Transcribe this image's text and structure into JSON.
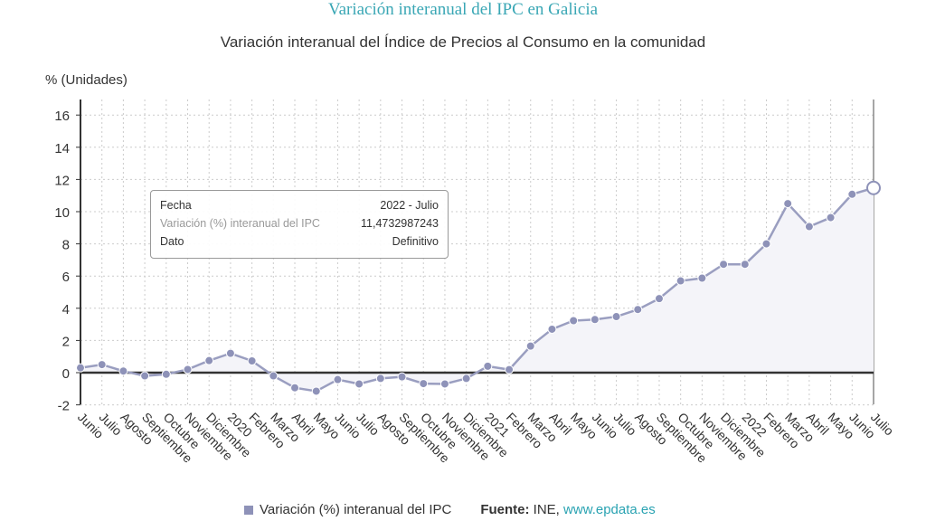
{
  "title": "Variación interanual del IPC en Galicia",
  "subtitle": "Variación interanual del Índice de Precios al Consumo en la comunidad",
  "tooltip": {
    "fecha_label": "Fecha",
    "fecha_value": "2022 - Julio",
    "series_label": "Variación (%) interanual del IPC",
    "series_value": "11,4732987243",
    "dato_label": "Dato",
    "dato_value": "Definitivo"
  },
  "legend": {
    "series": "Variación (%) interanual del IPC",
    "source_label": "Fuente:",
    "source_text": "INE,",
    "source_link": "www.epdata.es"
  },
  "colors": {
    "line": "#9a9ec0",
    "marker": "#8e92b8",
    "title": "#3aa7b5",
    "fill": "#f4f4f9"
  },
  "chart_data": {
    "type": "area",
    "ylabel": "% (Unidades)",
    "ylim": [
      -2,
      16
    ],
    "yticks": [
      -2,
      0,
      2,
      4,
      6,
      8,
      10,
      12,
      14,
      16
    ],
    "grid": true,
    "legend_position": "bottom",
    "categories": [
      "Junio",
      "Julio",
      "Agosto",
      "Septiembre",
      "Octubre",
      "Noviembre",
      "Diciembre",
      "2020",
      "Febrero",
      "Marzo",
      "Abril",
      "Mayo",
      "Junio",
      "Julio",
      "Agosto",
      "Septiembre",
      "Octubre",
      "Noviembre",
      "Diciembre",
      "2021",
      "Febrero",
      "Marzo",
      "Abril",
      "Mayo",
      "Junio",
      "Julio",
      "Agosto",
      "Septiembre",
      "Octubre",
      "Noviembre",
      "Diciembre",
      "2022",
      "Febrero",
      "Marzo",
      "Abril",
      "Mayo",
      "Junio",
      "Julio"
    ],
    "series": [
      {
        "name": "Variación (%) interanual del IPC",
        "values": [
          0.3,
          0.5,
          0.1,
          -0.2,
          -0.1,
          0.2,
          0.75,
          1.2,
          0.73,
          -0.2,
          -0.94,
          -1.15,
          -0.43,
          -0.7,
          -0.36,
          -0.26,
          -0.68,
          -0.7,
          -0.36,
          0.4,
          0.19,
          1.65,
          2.7,
          3.23,
          3.3,
          3.48,
          3.92,
          4.6,
          5.7,
          5.87,
          6.73,
          6.73,
          8.0,
          10.5,
          9.07,
          9.63,
          11.08,
          11.4732987243
        ]
      }
    ]
  }
}
